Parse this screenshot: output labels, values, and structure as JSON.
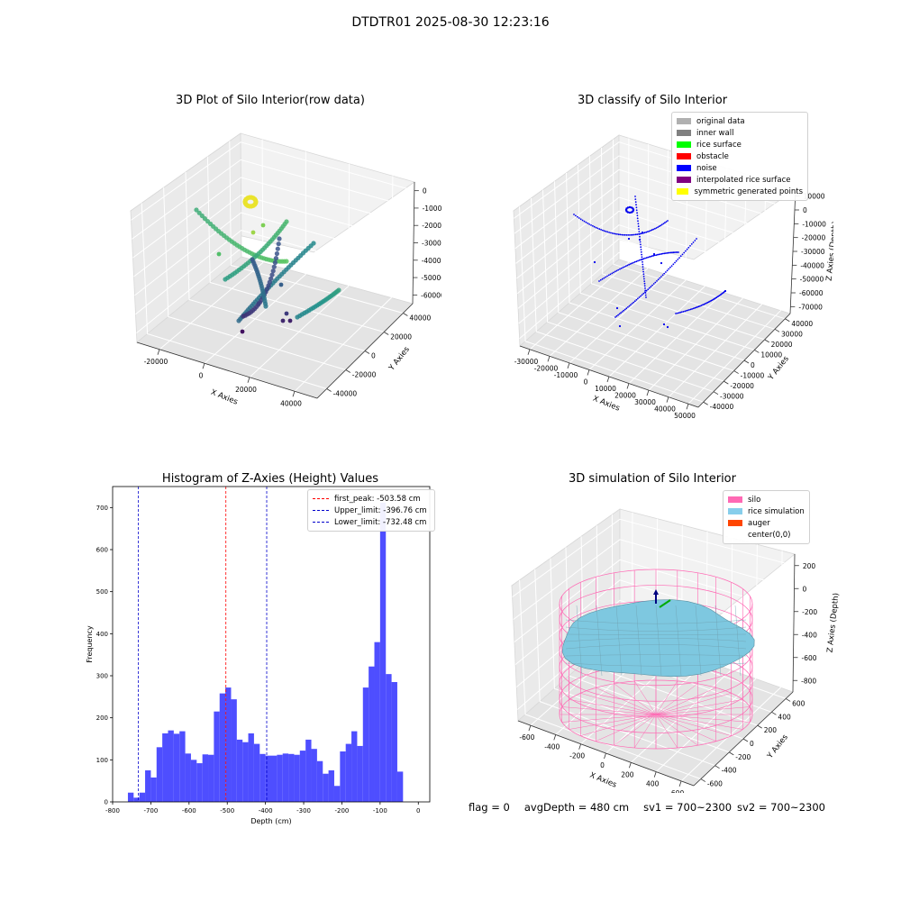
{
  "suptitle": "DTDTR01 2025-08-30 12:23:16",
  "footer": {
    "flag": "flag = 0",
    "avg_depth": "avgDepth = 480 cm",
    "sv1": "sv1 = 700~2300",
    "sv2": "sv2 = 700~2300"
  },
  "colors": {
    "histogram": "#4444ff",
    "first_peak": "#ff0000",
    "limits": "#0000cc",
    "noise": "#0000ee",
    "silo": "#ff69b4",
    "rice": "#7ec8e0"
  },
  "chart_data": [
    {
      "type": "scatter",
      "projection": "3d",
      "title": "3D Plot of Silo Interior(row data)",
      "xlabel": "X Axies",
      "ylabel": "Y Axies",
      "zlabel": "Z Axies (Depth)",
      "x_ticks": [
        "-20000",
        "0",
        "20000",
        "40000"
      ],
      "y_ticks": [
        "-40000",
        "-20000",
        "0",
        "20000",
        "40000"
      ],
      "z_ticks": [
        "0",
        "-10000",
        "-20000",
        "-30000",
        "-40000",
        "-50000",
        "-60000"
      ],
      "colormap": "viridis",
      "grid": true
    },
    {
      "type": "scatter",
      "projection": "3d",
      "title": "3D classify of Silo Interior",
      "xlabel": "X Axies",
      "ylabel": "Y Axies",
      "zlabel": "Z Axies (Depth)",
      "x_ticks": [
        "-30000",
        "-20000",
        "-10000",
        "0",
        "10000",
        "20000",
        "30000",
        "40000",
        "50000"
      ],
      "y_ticks": [
        "-40000",
        "-30000",
        "-20000",
        "-10000",
        "0",
        "10000",
        "20000",
        "30000",
        "40000"
      ],
      "z_ticks": [
        "10000",
        "0",
        "-10000",
        "-20000",
        "-30000",
        "-40000",
        "-50000",
        "-60000",
        "-70000"
      ],
      "legend": [
        {
          "label": "original data",
          "color": "#b0b0b0"
        },
        {
          "label": "inner wall",
          "color": "#808080"
        },
        {
          "label": "rice surface",
          "color": "#00ff00"
        },
        {
          "label": "obstacle",
          "color": "#ff0000"
        },
        {
          "label": "noise",
          "color": "#0000ff"
        },
        {
          "label": "interpolated rice surface",
          "color": "#800080"
        },
        {
          "label": "symmetric generated points",
          "color": "#ffff00"
        }
      ],
      "legend_position": "upper right",
      "grid": true
    },
    {
      "type": "bar",
      "title": "Histogram of Z-Axies (Height) Values",
      "xlabel": "Depth (cm)",
      "ylabel": "Frequency",
      "xlim": [
        -800,
        30
      ],
      "ylim": [
        0,
        750
      ],
      "x_ticks": [
        -800,
        -700,
        -600,
        -500,
        -400,
        -300,
        -200,
        -100,
        0
      ],
      "y_ticks": [
        0,
        100,
        200,
        300,
        400,
        500,
        600,
        700
      ],
      "bin_start": -760,
      "bin_width": 15,
      "values": [
        22,
        10,
        22,
        75,
        58,
        130,
        163,
        170,
        162,
        168,
        115,
        100,
        92,
        113,
        112,
        215,
        258,
        272,
        244,
        148,
        142,
        163,
        138,
        114,
        110,
        110,
        112,
        115,
        114,
        112,
        122,
        148,
        126,
        97,
        67,
        75,
        38,
        120,
        138,
        168,
        133,
        272,
        322,
        380,
        712,
        304,
        285,
        72
      ],
      "lines": [
        {
          "label": "first_peak: -503.58 cm",
          "x": -503.58,
          "color": "#ff0000"
        },
        {
          "label": "Upper_limit: -396.76 cm",
          "x": -396.76,
          "color": "#0000cc"
        },
        {
          "label": "Lower_limit: -732.48 cm",
          "x": -732.48,
          "color": "#0000cc"
        }
      ],
      "legend_position": "upper right"
    },
    {
      "type": "surface",
      "projection": "3d",
      "title": "3D simulation of Silo Interior",
      "xlabel": "X Axies",
      "ylabel": "Y Axies",
      "zlabel": "Z Axies (Depth)",
      "x_ticks": [
        "-600",
        "-400",
        "-200",
        "0",
        "200",
        "400",
        "600"
      ],
      "y_ticks": [
        "-600",
        "-400",
        "-200",
        "0",
        "200",
        "400",
        "600"
      ],
      "z_ticks": [
        "200",
        "0",
        "-200",
        "-400",
        "-600",
        "-800"
      ],
      "legend": [
        {
          "label": "silo",
          "color": "#ff69b4"
        },
        {
          "label": "rice simulation",
          "color": "#87ceeb"
        },
        {
          "label": "auger",
          "color": "#ff4500"
        },
        {
          "label": "center(0,0)",
          "color": "#ffffff"
        }
      ],
      "legend_position": "upper right",
      "grid": true
    }
  ]
}
